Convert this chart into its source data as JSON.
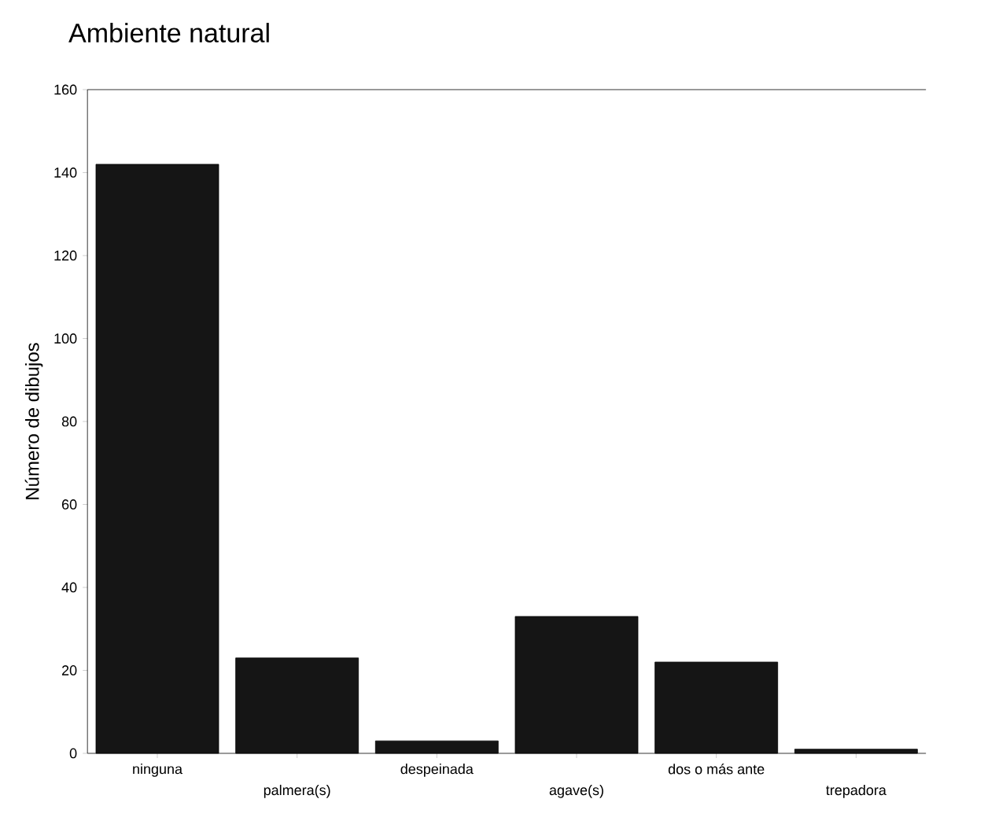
{
  "chart_data": {
    "type": "bar",
    "title": "Ambiente natural",
    "ylabel": "Número de dibujos",
    "categories": [
      "ninguna",
      "palmera(s)",
      "despeinada",
      "agave(s)",
      "dos o más ante",
      "trepadora"
    ],
    "values": [
      142,
      23,
      3,
      33,
      22,
      1
    ],
    "color": "#151515",
    "ylim": [
      0,
      160
    ],
    "yticks": [
      0,
      20,
      40,
      60,
      80,
      100,
      120,
      140,
      160
    ],
    "grid": false
  }
}
